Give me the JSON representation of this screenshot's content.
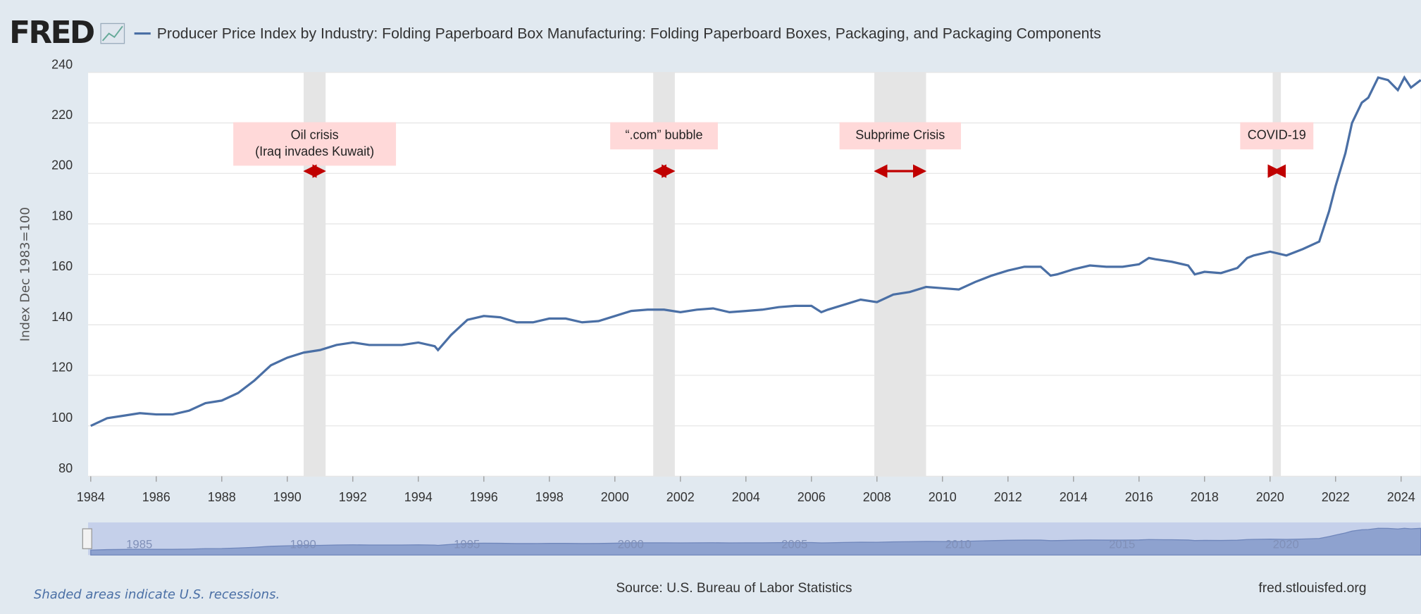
{
  "chart_data": {
    "type": "line",
    "logo": "FRED",
    "title": "Producer Price Index by Industry: Folding Paperboard Box Manufacturing: Folding Paperboard Boxes, Packaging, and Packaging Components",
    "y_label": "Index Dec 1983=100",
    "x": [
      1984.0,
      1984.5,
      1985.0,
      1985.5,
      1986.0,
      1986.5,
      1987.0,
      1987.5,
      1988.0,
      1988.5,
      1989.0,
      1989.5,
      1990.0,
      1990.5,
      1991.0,
      1991.5,
      1992.0,
      1992.5,
      1993.0,
      1993.5,
      1994.0,
      1994.5,
      1994.6,
      1995.0,
      1995.5,
      1996.0,
      1996.5,
      1997.0,
      1997.5,
      1998.0,
      1998.5,
      1999.0,
      1999.5,
      2000.0,
      2000.5,
      2001.0,
      2001.5,
      2002.0,
      2002.5,
      2003.0,
      2003.5,
      2004.0,
      2004.5,
      2005.0,
      2005.5,
      2006.0,
      2006.3,
      2006.5,
      2007.0,
      2007.5,
      2008.0,
      2008.5,
      2009.0,
      2009.5,
      2010.0,
      2010.5,
      2011.0,
      2011.5,
      2012.0,
      2012.5,
      2013.0,
      2013.3,
      2013.5,
      2014.0,
      2014.5,
      2015.0,
      2015.5,
      2016.0,
      2016.3,
      2016.5,
      2017.0,
      2017.5,
      2017.7,
      2018.0,
      2018.5,
      2019.0,
      2019.3,
      2019.5,
      2020.0,
      2020.5,
      2021.0,
      2021.5,
      2021.8,
      2022.0,
      2022.3,
      2022.5,
      2022.8,
      2023.0,
      2023.3,
      2023.6,
      2023.9,
      2024.1,
      2024.3,
      2024.6
    ],
    "series": [
      {
        "name": "Producer Price Index by Industry: Folding Paperboard Box Manufacturing: Folding Paperboard Boxes, Packaging, and Packaging Components",
        "color": "#4a6fa5",
        "values": [
          100,
          103,
          104,
          105,
          104.5,
          104.5,
          106,
          109,
          110,
          113,
          118,
          124,
          127,
          129,
          130,
          132,
          133,
          132,
          132,
          132,
          133,
          131.5,
          130,
          136,
          142,
          143.5,
          143,
          141,
          141,
          142.5,
          142.5,
          141,
          141.5,
          143.5,
          145.5,
          146,
          146,
          145,
          146,
          146.5,
          145,
          145.5,
          146,
          147,
          147.5,
          147.5,
          145,
          146,
          148,
          150,
          149,
          152,
          153,
          155,
          154.5,
          154,
          157,
          159.5,
          161.5,
          163,
          163,
          159.5,
          160,
          162,
          163.5,
          163,
          163,
          164,
          166.5,
          166,
          165,
          163.5,
          160,
          161,
          160.5,
          162.5,
          166.5,
          167.5,
          169,
          167.5,
          170,
          173,
          185,
          195,
          208,
          220,
          228,
          230,
          238,
          237,
          233,
          238,
          234,
          237
        ]
      }
    ],
    "xlim": [
      1983.92,
      2024.6
    ],
    "xticks": [
      1984,
      1986,
      1988,
      1990,
      1992,
      1994,
      1996,
      1998,
      2000,
      2002,
      2004,
      2006,
      2008,
      2010,
      2012,
      2014,
      2016,
      2018,
      2020,
      2022,
      2024
    ],
    "ylim": [
      80,
      240
    ],
    "yticks": [
      80,
      100,
      120,
      140,
      160,
      180,
      200,
      220,
      240
    ],
    "grid": true,
    "recessions": [
      {
        "start": 1990.5,
        "end": 1991.17,
        "label": [
          "Oil crisis",
          "(Iraq invades Kuwait)"
        ]
      },
      {
        "start": 2001.17,
        "end": 2001.83,
        "label": [
          "“.com” bubble"
        ]
      },
      {
        "start": 2007.92,
        "end": 2009.5,
        "label": [
          "Subprime Crisis"
        ]
      },
      {
        "start": 2020.08,
        "end": 2020.33,
        "label": [
          "COVID-19"
        ]
      }
    ],
    "navigator_labels": [
      1985,
      1990,
      1995,
      2000,
      2005,
      2010,
      2015,
      2020
    ],
    "recession_note": "Shaded areas indicate U.S. recessions.",
    "source": "Source: U.S. Bureau of Labor Statistics",
    "site": "fred.stlouisfed.org"
  }
}
